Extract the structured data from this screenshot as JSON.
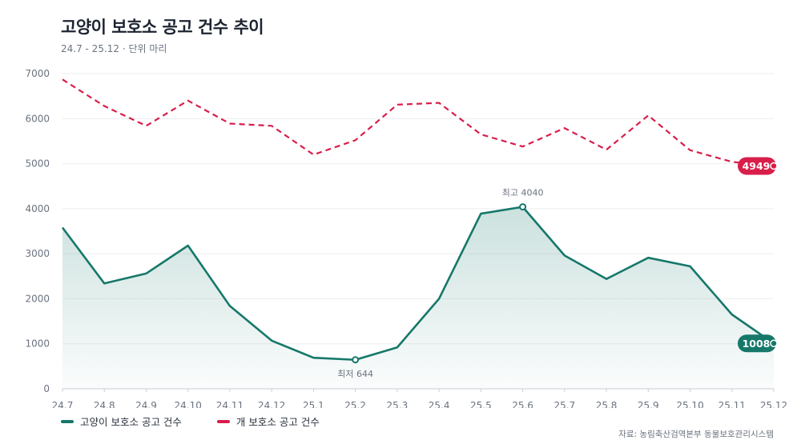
{
  "title": "고양이 보호소 공고 건수 추이",
  "subtitle": "24.7 - 25.12 · 단위 마리",
  "source": "자료: 농림축산검역본부 동물보호관리시스템",
  "colors": {
    "cat": "#16786a",
    "dog": "#d81e4a",
    "grid": "#eceef1",
    "axis": "#c9ced6",
    "text_muted": "#6b7380"
  },
  "chart_data": {
    "type": "line",
    "categories": [
      "24.7",
      "24.8",
      "24.9",
      "24.10",
      "24.11",
      "24.12",
      "25.1",
      "25.2",
      "25.3",
      "25.4",
      "25.5",
      "25.6",
      "25.7",
      "25.8",
      "25.9",
      "25.10",
      "25.11",
      "25.12"
    ],
    "ylim": [
      0,
      7000
    ],
    "yticks": [
      0,
      1000,
      2000,
      3000,
      4000,
      5000,
      6000,
      7000
    ],
    "grid": true,
    "legend_position": "bottom-left",
    "series": [
      {
        "name": "고양이 보호소 공고 건수",
        "color": "#16786a",
        "style": "solid-area",
        "values": [
          3580,
          2340,
          2560,
          3180,
          1840,
          1070,
          690,
          644,
          920,
          2000,
          3890,
          4040,
          2960,
          2440,
          2910,
          2720,
          1650,
          1008
        ]
      },
      {
        "name": "개 보호소 공고 건수",
        "color": "#d81e4a",
        "style": "dashed",
        "values": [
          6870,
          6280,
          5840,
          6400,
          5890,
          5840,
          5200,
          5520,
          6310,
          6350,
          5650,
          5380,
          5790,
          5310,
          6070,
          5300,
          5040,
          4949
        ]
      }
    ],
    "annotations": [
      {
        "text": "최고 4040",
        "series": 0,
        "index": 11,
        "placement": "above"
      },
      {
        "text": "최저 644",
        "series": 0,
        "index": 7,
        "placement": "below"
      }
    ],
    "end_labels": [
      {
        "text": "4949",
        "series": 1
      },
      {
        "text": "1008",
        "series": 0
      }
    ]
  }
}
